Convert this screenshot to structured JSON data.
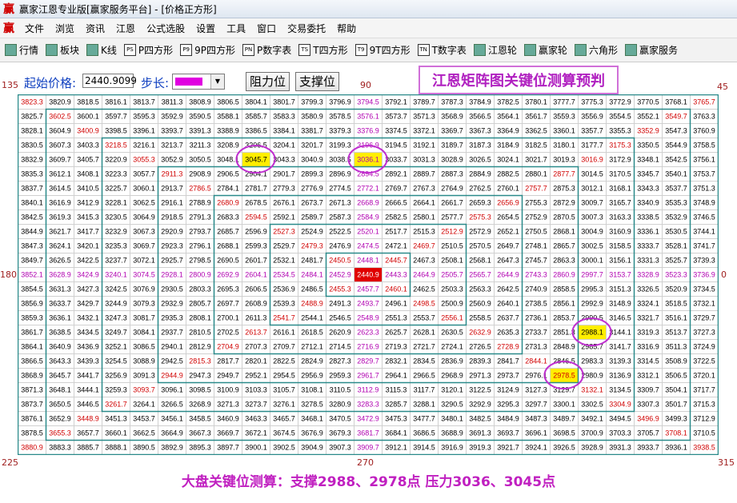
{
  "window": {
    "title": "赢家江恩专业版[赢家服务平台] - [价格正方形]",
    "logo": "赢",
    "menu": [
      "文件",
      "浏览",
      "资讯",
      "江恩",
      "公式选股",
      "设置",
      "工具",
      "窗口",
      "交易委托",
      "帮助"
    ],
    "toolbar": [
      {
        "label": "行情"
      },
      {
        "label": "板块"
      },
      {
        "label": "K线"
      },
      {
        "icon": "PS",
        "label": "P四方形"
      },
      {
        "icon": "P9",
        "label": "9P四方形"
      },
      {
        "icon": "PN",
        "label": "P数字表"
      },
      {
        "icon": "TS",
        "label": "T四方形"
      },
      {
        "icon": "T9",
        "label": "9T四方形"
      },
      {
        "icon": "TN",
        "label": "T数字表"
      },
      {
        "label": "江恩轮"
      },
      {
        "label": "赢家轮"
      },
      {
        "label": "六角形"
      },
      {
        "label": "赢家服务"
      }
    ]
  },
  "controls": {
    "start_label": "起始价格:",
    "start_value": "2440.9099",
    "step_label": "步长:",
    "buttons": [
      "阻力位",
      "支撑位"
    ]
  },
  "overlay_title": "江恩矩阵图关键位测算预判",
  "angle_labels": [
    135,
    90,
    45,
    180,
    0,
    225,
    270,
    315
  ],
  "footer": "大盘关键位测算：支撑2988、2978点   压力3036、3045点",
  "grid": {
    "rows": [
      [
        3823.3,
        3820.9,
        3818.5,
        3816.1,
        3813.7,
        3811.3,
        3808.9,
        3806.5,
        3804.1,
        3801.7,
        3799.3,
        3796.9,
        3794.5,
        3792.1,
        3789.7,
        3787.3,
        3784.9,
        3782.5,
        3780.1,
        3777.7,
        3775.3,
        3772.9,
        3770.5,
        3768.1,
        3765.7
      ],
      [
        3825.7,
        3602.5,
        3600.1,
        3597.7,
        3595.3,
        3592.9,
        3590.5,
        3588.1,
        3585.7,
        3583.3,
        3580.9,
        3578.5,
        3576.1,
        3573.7,
        3571.3,
        3568.9,
        3566.5,
        3564.1,
        3561.7,
        3559.3,
        3556.9,
        3554.5,
        3552.1,
        3549.7,
        3763.3
      ],
      [
        3828.1,
        3604.9,
        3400.9,
        3398.5,
        3396.1,
        3393.7,
        3391.3,
        3388.9,
        3386.5,
        3384.1,
        3381.7,
        3379.3,
        3376.9,
        3374.5,
        3372.1,
        3369.7,
        3367.3,
        3364.9,
        3362.5,
        3360.1,
        3357.7,
        3355.3,
        3352.9,
        3547.3,
        3760.9
      ],
      [
        3830.5,
        3607.3,
        3403.3,
        3218.5,
        3216.1,
        3213.7,
        3211.3,
        3208.9,
        3206.5,
        3204.1,
        3201.7,
        3199.3,
        3196.9,
        3194.5,
        3192.1,
        3189.7,
        3187.3,
        3184.9,
        3182.5,
        3180.1,
        3177.7,
        3175.3,
        3350.5,
        3544.9,
        3758.5
      ],
      [
        3832.9,
        3609.7,
        3405.7,
        3220.9,
        3055.3,
        3052.9,
        3050.5,
        3048.1,
        {
          "value": 3045.7,
          "highlight": "#ffee00"
        },
        3043.3,
        3040.9,
        3038.5,
        {
          "value": 3036.1,
          "highlight": "#ffee00"
        },
        3033.7,
        3031.3,
        3028.9,
        3026.5,
        3024.1,
        3021.7,
        3019.3,
        3016.9,
        3172.9,
        3348.1,
        3542.5,
        3756.1
      ],
      [
        3835.3,
        3612.1,
        3408.1,
        3223.3,
        3057.7,
        2911.3,
        2908.9,
        2906.5,
        2904.1,
        2901.7,
        2899.3,
        2896.9,
        2894.5,
        2892.1,
        2889.7,
        2887.3,
        2884.9,
        2882.5,
        2880.1,
        2877.7,
        3014.5,
        3170.5,
        3345.7,
        3540.1,
        3753.7
      ],
      [
        3837.7,
        3614.5,
        3410.5,
        3225.7,
        3060.1,
        2913.7,
        2786.5,
        2784.1,
        2781.7,
        2779.3,
        2776.9,
        2774.5,
        2772.1,
        2769.7,
        2767.3,
        2764.9,
        2762.5,
        2760.1,
        2757.7,
        2875.3,
        3012.1,
        3168.1,
        3343.3,
        3537.7,
        3751.3
      ],
      [
        3840.1,
        3616.9,
        3412.9,
        3228.1,
        3062.5,
        2916.1,
        2788.9,
        2680.9,
        2678.5,
        2676.1,
        2673.7,
        2671.3,
        2668.9,
        2666.5,
        2664.1,
        2661.7,
        2659.3,
        2656.9,
        2755.3,
        2872.9,
        3009.7,
        3165.7,
        3340.9,
        3535.3,
        3748.9
      ],
      [
        3842.5,
        3619.3,
        3415.3,
        3230.5,
        3064.9,
        2918.5,
        2791.3,
        2683.3,
        2594.5,
        2592.1,
        2589.7,
        2587.3,
        2584.9,
        2582.5,
        2580.1,
        2577.7,
        2575.3,
        2654.5,
        2752.9,
        2870.5,
        3007.3,
        3163.3,
        3338.5,
        3532.9,
        3746.5
      ],
      [
        3844.9,
        3621.7,
        3417.7,
        3232.9,
        3067.3,
        2920.9,
        2793.7,
        2685.7,
        2596.9,
        2527.3,
        2524.9,
        2522.5,
        2520.1,
        2517.7,
        2515.3,
        2512.9,
        2572.9,
        2652.1,
        2750.5,
        2868.1,
        3004.9,
        3160.9,
        3336.1,
        3530.5,
        3744.1
      ],
      [
        3847.3,
        3624.1,
        3420.1,
        3235.3,
        3069.7,
        2923.3,
        2796.1,
        2688.1,
        2599.3,
        2529.7,
        2479.3,
        2476.9,
        2474.5,
        2472.1,
        2469.7,
        2510.5,
        2570.5,
        2649.7,
        2748.1,
        2865.7,
        3002.5,
        3158.5,
        3333.7,
        3528.1,
        3741.7
      ],
      [
        3849.7,
        3626.5,
        3422.5,
        3237.7,
        3072.1,
        2925.7,
        2798.5,
        2690.5,
        2601.7,
        2532.1,
        2481.7,
        2450.5,
        2448.1,
        2445.7,
        2467.3,
        2508.1,
        2568.1,
        2647.3,
        2745.7,
        2863.3,
        3000.1,
        3156.1,
        3331.3,
        3525.7,
        3739.3
      ],
      [
        3852.1,
        3628.9,
        3424.9,
        3240.1,
        3074.5,
        2928.1,
        2800.9,
        2692.9,
        2604.1,
        2534.5,
        2484.1,
        2452.9,
        {
          "value": 2440.9,
          "highlight": "#e00000"
        },
        2443.3,
        2464.9,
        2505.7,
        2565.7,
        2644.9,
        2743.3,
        2860.9,
        2997.7,
        3153.7,
        3328.9,
        3523.3,
        3736.9
      ],
      [
        3854.5,
        3631.3,
        3427.3,
        3242.5,
        3076.9,
        2930.5,
        2803.3,
        2695.3,
        2606.5,
        2536.9,
        2486.5,
        2455.3,
        2457.7,
        2460.1,
        2462.5,
        2503.3,
        2563.3,
        2642.5,
        2740.9,
        2858.5,
        2995.3,
        3151.3,
        3326.5,
        3520.9,
        3734.5
      ],
      [
        3856.9,
        3633.7,
        3429.7,
        3244.9,
        3079.3,
        2932.9,
        2805.7,
        2697.7,
        2608.9,
        2539.3,
        2488.9,
        2491.3,
        2493.7,
        2496.1,
        2498.5,
        2500.9,
        2560.9,
        2640.1,
        2738.5,
        2856.1,
        2992.9,
        3148.9,
        3324.1,
        3518.5,
        3732.1
      ],
      [
        3859.3,
        3636.1,
        3432.1,
        3247.3,
        3081.7,
        2935.3,
        2808.1,
        2700.1,
        2611.3,
        2541.7,
        2544.1,
        2546.5,
        2548.9,
        2551.3,
        2553.7,
        2556.1,
        2558.5,
        2637.7,
        2736.1,
        2853.7,
        2990.5,
        3146.5,
        3321.7,
        3516.1,
        3729.7
      ],
      [
        3861.7,
        3638.5,
        3434.5,
        3249.7,
        3084.1,
        2937.7,
        2810.5,
        2702.5,
        2613.7,
        2616.1,
        2618.5,
        2620.9,
        2623.3,
        2625.7,
        2628.1,
        2630.5,
        2632.9,
        2635.3,
        2733.7,
        2851.3,
        {
          "value": 2988.1,
          "highlight": "#ffee00"
        },
        3144.1,
        3319.3,
        3513.7,
        3727.3
      ],
      [
        3864.1,
        3640.9,
        3436.9,
        3252.1,
        3086.5,
        2940.1,
        2812.9,
        2704.9,
        2707.3,
        2709.7,
        2712.1,
        2714.5,
        2716.9,
        2719.3,
        2721.7,
        2724.1,
        2726.5,
        2728.9,
        2731.3,
        2848.9,
        2985.7,
        3141.7,
        3316.9,
        3511.3,
        3724.9
      ],
      [
        3866.5,
        3643.3,
        3439.3,
        3254.5,
        3088.9,
        2942.5,
        2815.3,
        2817.7,
        2820.1,
        2822.5,
        2824.9,
        2827.3,
        2829.7,
        2832.1,
        2834.5,
        2836.9,
        2839.3,
        2841.7,
        2844.1,
        2846.5,
        2983.3,
        3139.3,
        3314.5,
        3508.9,
        3722.5
      ],
      [
        3868.9,
        3645.7,
        3441.7,
        3256.9,
        3091.3,
        2944.9,
        2947.3,
        2949.7,
        2952.1,
        2954.5,
        2956.9,
        2959.3,
        2961.7,
        2964.1,
        2966.5,
        2968.9,
        2971.3,
        2973.7,
        2976.1,
        {
          "value": 2978.5,
          "highlight": "#ffee00"
        },
        2980.9,
        3136.9,
        3312.1,
        3506.5,
        3720.1
      ],
      [
        3871.3,
        3648.1,
        3444.1,
        3259.3,
        3093.7,
        3096.1,
        3098.5,
        3100.9,
        3103.3,
        3105.7,
        3108.1,
        3110.5,
        3112.9,
        3115.3,
        3117.7,
        3120.1,
        3122.5,
        3124.9,
        3127.3,
        3129.7,
        3132.1,
        3134.5,
        3309.7,
        3504.1,
        3717.7
      ],
      [
        3873.7,
        3650.5,
        3446.5,
        3261.7,
        3264.1,
        3266.5,
        3268.9,
        3271.3,
        3273.7,
        3276.1,
        3278.5,
        3280.9,
        3283.3,
        3285.7,
        3288.1,
        3290.5,
        3292.9,
        3295.3,
        3297.7,
        3300.1,
        3302.5,
        3304.9,
        3307.3,
        3501.7,
        3715.3
      ],
      [
        3876.1,
        3652.9,
        3448.9,
        3451.3,
        3453.7,
        3456.1,
        3458.5,
        3460.9,
        3463.3,
        3465.7,
        3468.1,
        3470.5,
        3472.9,
        3475.3,
        3477.7,
        3480.1,
        3482.5,
        3484.9,
        3487.3,
        3489.7,
        3492.1,
        3494.5,
        3496.9,
        3499.3,
        3712.9
      ],
      [
        3878.5,
        3655.3,
        3657.7,
        3660.1,
        3662.5,
        3664.9,
        3667.3,
        3669.7,
        3672.1,
        3674.5,
        3676.9,
        3679.3,
        3681.7,
        3684.1,
        3686.5,
        3688.9,
        3691.3,
        3693.7,
        3696.1,
        3698.5,
        3700.9,
        3703.3,
        3705.7,
        3708.1,
        3710.5
      ],
      [
        3880.9,
        3883.3,
        3885.7,
        3888.1,
        3890.5,
        3892.9,
        3895.3,
        3897.7,
        3900.1,
        3902.5,
        3904.9,
        3907.3,
        3909.7,
        3912.1,
        3914.5,
        3916.9,
        3919.3,
        3921.7,
        3924.1,
        3926.5,
        3928.9,
        3931.3,
        3933.7,
        3936.1,
        3938.5
      ]
    ]
  }
}
